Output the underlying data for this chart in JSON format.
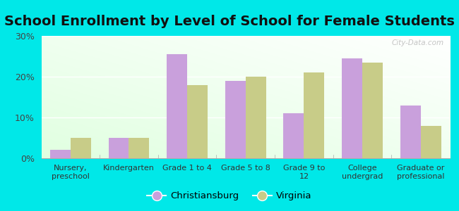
{
  "title": "School Enrollment by Level of School for Female Students",
  "categories": [
    "Nursery,\npreschool",
    "Kindergarten",
    "Grade 1 to 4",
    "Grade 5 to 8",
    "Grade 9 to\n12",
    "College\nundergrad",
    "Graduate or\nprofessional"
  ],
  "christiansburg": [
    2.0,
    5.0,
    25.5,
    19.0,
    11.0,
    24.5,
    13.0
  ],
  "virginia": [
    5.0,
    5.0,
    18.0,
    20.0,
    21.0,
    23.5,
    8.0
  ],
  "color_christiansburg": "#c9a0dc",
  "color_virginia": "#c8cc88",
  "background_outer": "#00e8e8",
  "ylim": [
    0,
    30
  ],
  "yticks": [
    0,
    10,
    20,
    30
  ],
  "ytick_labels": [
    "0%",
    "10%",
    "20%",
    "30%"
  ],
  "title_fontsize": 14,
  "legend_label_1": "Christiansburg",
  "legend_label_2": "Virginia",
  "bar_width": 0.35,
  "watermark": "City-Data.com"
}
